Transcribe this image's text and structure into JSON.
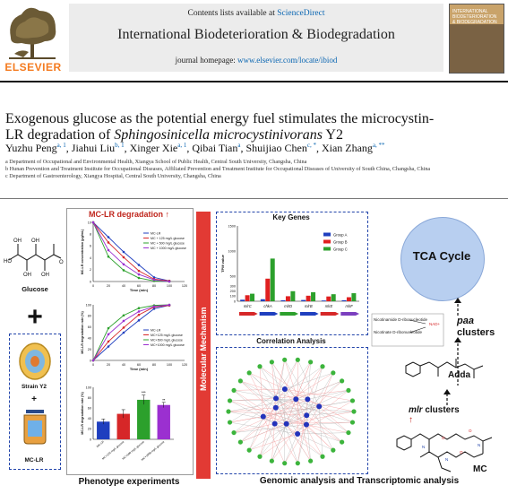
{
  "header": {
    "publisher_wordmark": "ELSEVIER",
    "contents_prefix": "Contents lists available at ",
    "contents_link": "ScienceDirect",
    "journal_title": "International Biodeterioration & Biodegradation",
    "homepage_prefix": "journal homepage: ",
    "homepage_url": "www.elsevier.com/locate/ibiod",
    "cover_text": "INTERNATIONAL BIODETERIORATION & BIODEGRADATION"
  },
  "article": {
    "title_line1": "Exogenous glucose as the potential energy fuel stimulates the microcystin-",
    "title_line2_plain": "LR degradation of ",
    "title_line2_italic": "Sphingosinicella microcystinivorans",
    "title_line2_end": " Y2",
    "authors": [
      {
        "name": "Yuzhu Peng",
        "sup": "a, 1",
        "sep": ", "
      },
      {
        "name": "Jiahui Liu",
        "sup": "b, 1",
        "sep": ", "
      },
      {
        "name": "Xinger Xie",
        "sup": "a, 1",
        "sep": ", "
      },
      {
        "name": "Qibai Tian",
        "sup": "a",
        "sep": ", "
      },
      {
        "name": "Shuijiao Chen",
        "sup": "c, *",
        "sep": ", "
      },
      {
        "name": "Xian Zhang",
        "sup": "a, **",
        "sep": ""
      }
    ],
    "affiliations": [
      "a Department of Occupational and Environmental Health, Xiangya School of Public Health, Central South University, Changsha, China",
      "b Hunan Prevention and Treatment Institute for Occupational Diseases, Affiliated Prevention and Treatment Institute for Occupational Diseases of University of South China, Changsha, China",
      "c Department of Gastroenterology, Xiangya Hospital, Central South University, Changsha, China"
    ]
  },
  "graphical_abstract": {
    "glucose_label": "Glucose",
    "plus": "+",
    "strain_label": "Strain Y2",
    "small_plus": "+",
    "mclr_label": "MC-LR",
    "degradation_header": "MC-LR degradation",
    "phenotype_footer": "Phenotype experiments",
    "molecular_mechanism": "Molecular Mechanism",
    "key_genes_title": "Key Genes",
    "correlation_title": "Correlation Analysis",
    "genomic_footer": "Genomic analysis and Transcriptomic analysis",
    "tca_label": "TCA Cycle",
    "paa_label_italic": "paa",
    "paa_label_rest": "clusters",
    "mlr_label_italic": "mlr",
    "mlr_label_rest": " clusters",
    "adda_label": "Adda",
    "mc_label": "MC",
    "pathway_lines": [
      "Nicotinamide D-ribonucleotide",
      "Nicotinate D-ribonucleotide",
      "NAD+"
    ]
  },
  "chart_data": [
    {
      "type": "line",
      "xlabel": "Time (min)",
      "ylabel": "MC-LR concentration (μg/mL)",
      "x": [
        0,
        20,
        40,
        60,
        80,
        100
      ],
      "xlim": [
        0,
        120
      ],
      "ylim": [
        0,
        10
      ],
      "xticks": [
        "0",
        "20",
        "40",
        "60",
        "80",
        "100",
        "120"
      ],
      "yticks": [
        "0",
        "2",
        "4",
        "6",
        "8",
        "10"
      ],
      "series": [
        {
          "name": "MC-LR",
          "color": "#1f3fbf",
          "values": [
            10,
            7.5,
            5.0,
            2.8,
            0.7,
            0.1
          ]
        },
        {
          "name": "MC + 125 mg/L glucose",
          "color": "#d62728",
          "values": [
            10,
            6.6,
            4.1,
            1.8,
            0.4,
            0.1
          ]
        },
        {
          "name": "MC + 500 mg/L glucose",
          "color": "#2ca02c",
          "values": [
            10,
            4.2,
            1.9,
            0.6,
            0.1,
            0.0
          ]
        },
        {
          "name": "MC + 1000 mg/L glucose",
          "color": "#9b30d0",
          "values": [
            10,
            5.3,
            2.9,
            1.2,
            0.3,
            0.0
          ]
        }
      ]
    },
    {
      "type": "line",
      "xlabel": "Time (min)",
      "ylabel": "MC-LR degradation rate (%)",
      "x": [
        0,
        20,
        40,
        60,
        80,
        100
      ],
      "xlim": [
        0,
        120
      ],
      "ylim": [
        0,
        100
      ],
      "xticks": [
        "0",
        "20",
        "40",
        "60",
        "80",
        "100",
        "120"
      ],
      "yticks": [
        "0",
        "20",
        "40",
        "60",
        "80",
        "100"
      ],
      "series": [
        {
          "name": "MC-LR",
          "color": "#1f3fbf",
          "values": [
            0,
            25,
            50,
            72,
            93,
            99
          ]
        },
        {
          "name": "MC+125 mg/L glucose",
          "color": "#d62728",
          "values": [
            0,
            34,
            59,
            82,
            96,
            99
          ]
        },
        {
          "name": "MC+500 mg/L glucose",
          "color": "#2ca02c",
          "values": [
            0,
            58,
            81,
            94,
            99,
            100
          ]
        },
        {
          "name": "MC+1000 mg/L glucose",
          "color": "#9b30d0",
          "values": [
            0,
            47,
            71,
            88,
            97,
            100
          ]
        }
      ]
    },
    {
      "type": "bar",
      "ylabel": "MC-LR degradation rate (%)",
      "ylim": [
        0,
        100
      ],
      "yticks": [
        "0",
        "20",
        "40",
        "60",
        "80",
        "100"
      ],
      "categories": [
        "MC-LR",
        "MC+125 mg/L glucose",
        "MC+500 mg/L glucose",
        "MC+1000 mg/L glucose"
      ],
      "values": [
        34,
        49,
        76,
        66
      ],
      "errors": [
        5,
        8,
        9,
        5
      ],
      "colors": [
        "#1f3fbf",
        "#d62728",
        "#2ca02c",
        "#9b30d0"
      ],
      "significance": [
        "",
        "",
        "***",
        "**"
      ]
    },
    {
      "type": "bar",
      "title": "Key Genes",
      "ylabel": "TPM value",
      "categories": [
        "mlrC",
        "chkA",
        "mlrD",
        "mlrB",
        "mlrE",
        "mlrF"
      ],
      "series": [
        {
          "name": "Group A",
          "color": "#1f3fbf",
          "values": [
            30,
            40,
            20,
            25,
            15,
            20
          ]
        },
        {
          "name": "Group B",
          "color": "#e02020",
          "values": [
            120,
            450,
            100,
            110,
            95,
            80
          ]
        },
        {
          "name": "Group C",
          "color": "#2ca02c",
          "values": [
            150,
            850,
            200,
            180,
            140,
            160
          ]
        }
      ],
      "yticks": [
        "0",
        "100",
        "200",
        "300",
        "500",
        "1000",
        "1500"
      ]
    }
  ]
}
